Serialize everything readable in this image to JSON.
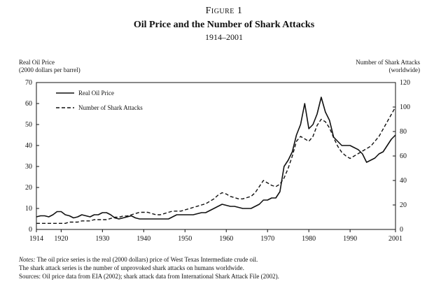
{
  "figure": {
    "label": "Figure 1",
    "title": "Oil Price and the Number of Shark Attacks",
    "subtitle": "1914–2001"
  },
  "left_axis_label_1": "Real Oil Price",
  "left_axis_label_2": "(2000 dollars per barrel)",
  "right_axis_label_1": "Number of Shark Attacks",
  "right_axis_label_2": "(worldwide)",
  "notes": {
    "notes_prefix": "Notes:",
    "line1": "The oil price series is the real (2000 dollars) price of West Texas Intermediate crude oil.",
    "line2": "The shark attack series is the number of unprovoked shark attacks on humans worldwide.",
    "line3": "Sources: Oil price data from EIA (2002); shark attack data from International Shark Attack File (2002)."
  },
  "chart_data": {
    "type": "line",
    "x_ticks": [
      1914,
      1920,
      1930,
      1940,
      1950,
      1960,
      1970,
      1980,
      1990,
      2001
    ],
    "xlim": [
      1914,
      2001
    ],
    "ylim_left": [
      0,
      70
    ],
    "yticks_left": [
      0,
      10,
      20,
      30,
      40,
      50,
      60,
      70
    ],
    "ylim_right": [
      0,
      120
    ],
    "yticks_right": [
      0,
      20,
      40,
      60,
      80,
      100,
      120
    ],
    "legend_position": "top-left",
    "series": [
      {
        "name": "Real Oil Price",
        "axis": "left",
        "style": "solid",
        "points": [
          [
            1914,
            6
          ],
          [
            1915,
            6.5
          ],
          [
            1916,
            6.5
          ],
          [
            1917,
            6
          ],
          [
            1918,
            7
          ],
          [
            1919,
            8.5
          ],
          [
            1920,
            8.5
          ],
          [
            1921,
            7
          ],
          [
            1922,
            6.5
          ],
          [
            1923,
            5.5
          ],
          [
            1924,
            6
          ],
          [
            1925,
            7
          ],
          [
            1926,
            6.5
          ],
          [
            1927,
            6
          ],
          [
            1928,
            7
          ],
          [
            1929,
            7
          ],
          [
            1930,
            8
          ],
          [
            1931,
            8
          ],
          [
            1932,
            7
          ],
          [
            1933,
            5.5
          ],
          [
            1934,
            5
          ],
          [
            1935,
            5.5
          ],
          [
            1936,
            6
          ],
          [
            1937,
            6.5
          ],
          [
            1938,
            5.5
          ],
          [
            1939,
            5
          ],
          [
            1940,
            5
          ],
          [
            1941,
            5
          ],
          [
            1942,
            5
          ],
          [
            1943,
            5
          ],
          [
            1944,
            5
          ],
          [
            1945,
            5
          ],
          [
            1946,
            5
          ],
          [
            1947,
            6
          ],
          [
            1948,
            7
          ],
          [
            1949,
            7
          ],
          [
            1950,
            7
          ],
          [
            1951,
            7
          ],
          [
            1952,
            7
          ],
          [
            1953,
            7.5
          ],
          [
            1954,
            8
          ],
          [
            1955,
            8
          ],
          [
            1956,
            9
          ],
          [
            1957,
            10
          ],
          [
            1958,
            11
          ],
          [
            1959,
            12
          ],
          [
            1960,
            11.5
          ],
          [
            1961,
            11
          ],
          [
            1962,
            11
          ],
          [
            1963,
            10.5
          ],
          [
            1964,
            10
          ],
          [
            1965,
            10
          ],
          [
            1966,
            10
          ],
          [
            1967,
            11
          ],
          [
            1968,
            12
          ],
          [
            1969,
            14
          ],
          [
            1970,
            14
          ],
          [
            1971,
            15
          ],
          [
            1972,
            15
          ],
          [
            1973,
            18
          ],
          [
            1974,
            30
          ],
          [
            1975,
            33
          ],
          [
            1976,
            37
          ],
          [
            1977,
            45
          ],
          [
            1978,
            50
          ],
          [
            1979,
            60
          ],
          [
            1980,
            48
          ],
          [
            1981,
            50
          ],
          [
            1982,
            55
          ],
          [
            1983,
            63
          ],
          [
            1984,
            56
          ],
          [
            1985,
            52
          ],
          [
            1986,
            44
          ],
          [
            1987,
            42
          ],
          [
            1988,
            40
          ],
          [
            1989,
            40
          ],
          [
            1990,
            40
          ],
          [
            1991,
            39
          ],
          [
            1992,
            38
          ],
          [
            1993,
            36
          ],
          [
            1994,
            32
          ],
          [
            1995,
            33
          ],
          [
            1996,
            34
          ],
          [
            1997,
            36
          ],
          [
            1998,
            37
          ],
          [
            1999,
            40
          ],
          [
            2000,
            43
          ],
          [
            2001,
            45
          ]
        ]
      },
      {
        "name": "Number of Shark Attacks",
        "axis": "right",
        "style": "dashed",
        "points": [
          [
            1914,
            5
          ],
          [
            1915,
            5
          ],
          [
            1916,
            5
          ],
          [
            1917,
            5
          ],
          [
            1918,
            5
          ],
          [
            1919,
            5
          ],
          [
            1920,
            5
          ],
          [
            1921,
            5
          ],
          [
            1922,
            6
          ],
          [
            1923,
            6
          ],
          [
            1924,
            6
          ],
          [
            1925,
            7
          ],
          [
            1926,
            7
          ],
          [
            1927,
            7
          ],
          [
            1928,
            8
          ],
          [
            1929,
            8
          ],
          [
            1930,
            8
          ],
          [
            1931,
            8
          ],
          [
            1932,
            9
          ],
          [
            1933,
            10
          ],
          [
            1934,
            10
          ],
          [
            1935,
            11
          ],
          [
            1936,
            11
          ],
          [
            1937,
            12
          ],
          [
            1938,
            13
          ],
          [
            1939,
            14
          ],
          [
            1940,
            14
          ],
          [
            1941,
            14
          ],
          [
            1942,
            13
          ],
          [
            1943,
            12
          ],
          [
            1944,
            12
          ],
          [
            1945,
            13
          ],
          [
            1946,
            14
          ],
          [
            1947,
            15
          ],
          [
            1948,
            15
          ],
          [
            1949,
            15
          ],
          [
            1950,
            16
          ],
          [
            1951,
            17
          ],
          [
            1952,
            18
          ],
          [
            1953,
            19
          ],
          [
            1954,
            20
          ],
          [
            1955,
            21
          ],
          [
            1956,
            23
          ],
          [
            1957,
            25
          ],
          [
            1958,
            28
          ],
          [
            1959,
            30
          ],
          [
            1960,
            29
          ],
          [
            1961,
            27
          ],
          [
            1962,
            26
          ],
          [
            1963,
            25
          ],
          [
            1964,
            25
          ],
          [
            1965,
            26
          ],
          [
            1966,
            27
          ],
          [
            1967,
            30
          ],
          [
            1968,
            35
          ],
          [
            1969,
            40
          ],
          [
            1970,
            38
          ],
          [
            1971,
            36
          ],
          [
            1972,
            35
          ],
          [
            1973,
            37
          ],
          [
            1974,
            42
          ],
          [
            1975,
            50
          ],
          [
            1976,
            60
          ],
          [
            1977,
            72
          ],
          [
            1978,
            76
          ],
          [
            1979,
            74
          ],
          [
            1980,
            72
          ],
          [
            1981,
            76
          ],
          [
            1982,
            85
          ],
          [
            1983,
            90
          ],
          [
            1984,
            88
          ],
          [
            1985,
            83
          ],
          [
            1986,
            75
          ],
          [
            1987,
            68
          ],
          [
            1988,
            63
          ],
          [
            1989,
            60
          ],
          [
            1990,
            58
          ],
          [
            1991,
            60
          ],
          [
            1992,
            62
          ],
          [
            1993,
            64
          ],
          [
            1994,
            66
          ],
          [
            1995,
            68
          ],
          [
            1996,
            72
          ],
          [
            1997,
            76
          ],
          [
            1998,
            82
          ],
          [
            1999,
            88
          ],
          [
            2000,
            94
          ],
          [
            2001,
            100
          ]
        ]
      }
    ]
  }
}
